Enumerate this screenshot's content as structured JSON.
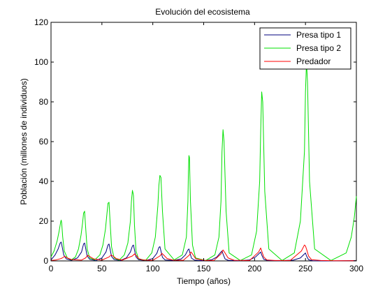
{
  "chart_data": {
    "type": "line",
    "title": "Evolución del ecosistema",
    "xlabel": "Tiempo (años)",
    "ylabel": "Población (millones de individuos)",
    "xlim": [
      0,
      300
    ],
    "ylim": [
      0,
      120
    ],
    "xticks": [
      0,
      50,
      100,
      150,
      200,
      250,
      300
    ],
    "yticks": [
      0,
      20,
      40,
      60,
      80,
      100,
      120
    ],
    "grid": false,
    "legend_position": "top-right",
    "series": [
      {
        "name": "Presa tipo 1",
        "color": "#00007f",
        "x": [
          0,
          4,
          7,
          9,
          10,
          11,
          12.5,
          15,
          20,
          26,
          30,
          32,
          33,
          34,
          35.5,
          38,
          44,
          50,
          54,
          56,
          57,
          58,
          59.5,
          62,
          68,
          74,
          78,
          80,
          81,
          82,
          83.5,
          86,
          93,
          100,
          104,
          106,
          107,
          108,
          109.5,
          112,
          120,
          128,
          132,
          134.5,
          135.5,
          136.5,
          138,
          141,
          150,
          158,
          163,
          167,
          168,
          169,
          171,
          174,
          185,
          195,
          201,
          205,
          206,
          207,
          209,
          213,
          225,
          238,
          245,
          249,
          250,
          251,
          253,
          257,
          270,
          285,
          300
        ],
        "y": [
          0.5,
          3,
          6,
          9,
          9.5,
          7,
          3,
          1,
          0.3,
          1.5,
          4.5,
          8.5,
          9,
          6.5,
          2.5,
          0.8,
          0.2,
          1.5,
          4.5,
          8,
          8.5,
          6,
          2.2,
          0.7,
          0.2,
          1.5,
          4.5,
          7.5,
          8,
          5.5,
          2,
          0.6,
          0.2,
          1.2,
          3.8,
          6.8,
          7.2,
          5,
          1.8,
          0.5,
          0.2,
          1,
          3,
          5.5,
          6,
          4,
          1.4,
          0.4,
          0.1,
          0.6,
          2,
          4.5,
          5,
          3.5,
          1,
          0.3,
          0.1,
          0.5,
          2,
          4,
          4.5,
          3,
          0.8,
          0.2,
          0.1,
          0.4,
          1.5,
          3.5,
          4,
          2.5,
          0.6,
          0.1,
          0,
          0.1,
          0.2
        ]
      },
      {
        "name": "Presa tipo 2",
        "color": "#00e000",
        "x": [
          0,
          3,
          6,
          8,
          9.5,
          10,
          10.5,
          11.5,
          13,
          16,
          20,
          24,
          27,
          29.5,
          31,
          32,
          33,
          34,
          35.5,
          38,
          43,
          48,
          51,
          53.5,
          55,
          56,
          57,
          58,
          59.5,
          62,
          67,
          72,
          75.5,
          78,
          79,
          80,
          81,
          82,
          83.5,
          86,
          93,
          99,
          102.5,
          105,
          106,
          107,
          108,
          109.5,
          112,
          121,
          129,
          133,
          134.5,
          135,
          135.5,
          136,
          137,
          139,
          142,
          152,
          161,
          165,
          167,
          168,
          169,
          170,
          172,
          175,
          186,
          197,
          202,
          205,
          206,
          207,
          208,
          210,
          214,
          227,
          239,
          245,
          249,
          250,
          251,
          252,
          254,
          259,
          275,
          290,
          295,
          298,
          300
        ],
        "y": [
          2,
          5,
          10,
          15,
          19.5,
          20.5,
          19,
          12,
          5,
          1.5,
          0.5,
          2,
          6,
          13,
          19,
          24,
          25,
          17,
          6,
          1.5,
          0.5,
          3,
          8,
          16,
          24,
          29,
          29.5,
          20,
          7,
          1.5,
          0.4,
          3,
          9,
          20,
          30,
          35.5,
          33,
          18,
          5,
          1,
          0.3,
          4,
          12,
          28,
          38,
          43,
          42,
          25,
          6,
          0.5,
          3,
          12,
          30,
          45,
          53,
          52,
          30,
          8,
          1.5,
          0.2,
          3,
          12,
          30,
          55,
          66,
          60,
          25,
          4,
          0.2,
          3,
          15,
          40,
          65,
          85,
          80,
          35,
          6,
          0.2,
          4,
          20,
          55,
          85,
          100,
          90,
          40,
          6,
          0.2,
          4,
          12,
          22,
          32.5
        ]
      },
      {
        "name": "Predador",
        "color": "#ff0000",
        "x": [
          0,
          5,
          10,
          12,
          13.5,
          16,
          20,
          30,
          34,
          36,
          38,
          42,
          50,
          57,
          59,
          61,
          64,
          70,
          80,
          82,
          84,
          86,
          90,
          100,
          107,
          109,
          111,
          114,
          120,
          130,
          136,
          137.5,
          139,
          142,
          150,
          160,
          167,
          169,
          171,
          174,
          180,
          195,
          204,
          206,
          207,
          209,
          212,
          220,
          235,
          246,
          249,
          250,
          251,
          253,
          256,
          265,
          280,
          300
        ],
        "y": [
          0.2,
          0.5,
          1.2,
          1.8,
          2.3,
          1.5,
          0.7,
          0.4,
          1.5,
          2.8,
          2.2,
          1,
          0.4,
          2,
          3,
          2.4,
          1.2,
          0.4,
          2.5,
          3.5,
          2.6,
          1.2,
          0.5,
          0.3,
          2.5,
          3.8,
          2.8,
          1.2,
          0.4,
          0.3,
          3,
          4.5,
          3.5,
          1.2,
          0.3,
          0.2,
          3.5,
          5.5,
          4,
          1.5,
          0.3,
          0.2,
          4.5,
          6.5,
          5,
          2,
          0.5,
          0.2,
          0.2,
          5,
          8,
          7.5,
          6,
          2.5,
          0.6,
          0.2,
          0.1,
          0.1
        ]
      }
    ]
  }
}
